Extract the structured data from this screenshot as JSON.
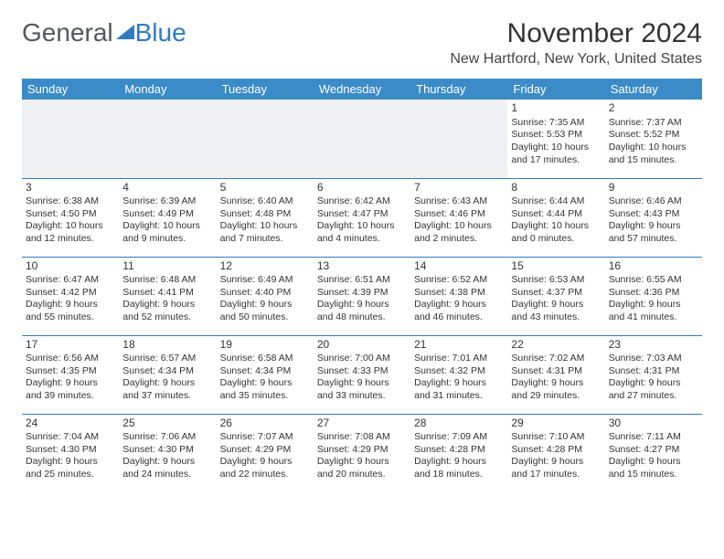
{
  "logo": {
    "text_gray": "General",
    "text_blue": "Blue",
    "triangle_color": "#2f7bbf"
  },
  "title": "November 2024",
  "location": "New Hartford, New York, United States",
  "header_bg": "#3b8bc8",
  "header_text_color": "#ffffff",
  "border_color": "#2f7bbf",
  "day_headers": [
    "Sunday",
    "Monday",
    "Tuesday",
    "Wednesday",
    "Thursday",
    "Friday",
    "Saturday"
  ],
  "weeks": [
    [
      null,
      null,
      null,
      null,
      null,
      {
        "n": "1",
        "sunrise": "7:35 AM",
        "sunset": "5:53 PM",
        "daylight": "10 hours and 17 minutes."
      },
      {
        "n": "2",
        "sunrise": "7:37 AM",
        "sunset": "5:52 PM",
        "daylight": "10 hours and 15 minutes."
      }
    ],
    [
      {
        "n": "3",
        "sunrise": "6:38 AM",
        "sunset": "4:50 PM",
        "daylight": "10 hours and 12 minutes."
      },
      {
        "n": "4",
        "sunrise": "6:39 AM",
        "sunset": "4:49 PM",
        "daylight": "10 hours and 9 minutes."
      },
      {
        "n": "5",
        "sunrise": "6:40 AM",
        "sunset": "4:48 PM",
        "daylight": "10 hours and 7 minutes."
      },
      {
        "n": "6",
        "sunrise": "6:42 AM",
        "sunset": "4:47 PM",
        "daylight": "10 hours and 4 minutes."
      },
      {
        "n": "7",
        "sunrise": "6:43 AM",
        "sunset": "4:46 PM",
        "daylight": "10 hours and 2 minutes."
      },
      {
        "n": "8",
        "sunrise": "6:44 AM",
        "sunset": "4:44 PM",
        "daylight": "10 hours and 0 minutes."
      },
      {
        "n": "9",
        "sunrise": "6:46 AM",
        "sunset": "4:43 PM",
        "daylight": "9 hours and 57 minutes."
      }
    ],
    [
      {
        "n": "10",
        "sunrise": "6:47 AM",
        "sunset": "4:42 PM",
        "daylight": "9 hours and 55 minutes."
      },
      {
        "n": "11",
        "sunrise": "6:48 AM",
        "sunset": "4:41 PM",
        "daylight": "9 hours and 52 minutes."
      },
      {
        "n": "12",
        "sunrise": "6:49 AM",
        "sunset": "4:40 PM",
        "daylight": "9 hours and 50 minutes."
      },
      {
        "n": "13",
        "sunrise": "6:51 AM",
        "sunset": "4:39 PM",
        "daylight": "9 hours and 48 minutes."
      },
      {
        "n": "14",
        "sunrise": "6:52 AM",
        "sunset": "4:38 PM",
        "daylight": "9 hours and 46 minutes."
      },
      {
        "n": "15",
        "sunrise": "6:53 AM",
        "sunset": "4:37 PM",
        "daylight": "9 hours and 43 minutes."
      },
      {
        "n": "16",
        "sunrise": "6:55 AM",
        "sunset": "4:36 PM",
        "daylight": "9 hours and 41 minutes."
      }
    ],
    [
      {
        "n": "17",
        "sunrise": "6:56 AM",
        "sunset": "4:35 PM",
        "daylight": "9 hours and 39 minutes."
      },
      {
        "n": "18",
        "sunrise": "6:57 AM",
        "sunset": "4:34 PM",
        "daylight": "9 hours and 37 minutes."
      },
      {
        "n": "19",
        "sunrise": "6:58 AM",
        "sunset": "4:34 PM",
        "daylight": "9 hours and 35 minutes."
      },
      {
        "n": "20",
        "sunrise": "7:00 AM",
        "sunset": "4:33 PM",
        "daylight": "9 hours and 33 minutes."
      },
      {
        "n": "21",
        "sunrise": "7:01 AM",
        "sunset": "4:32 PM",
        "daylight": "9 hours and 31 minutes."
      },
      {
        "n": "22",
        "sunrise": "7:02 AM",
        "sunset": "4:31 PM",
        "daylight": "9 hours and 29 minutes."
      },
      {
        "n": "23",
        "sunrise": "7:03 AM",
        "sunset": "4:31 PM",
        "daylight": "9 hours and 27 minutes."
      }
    ],
    [
      {
        "n": "24",
        "sunrise": "7:04 AM",
        "sunset": "4:30 PM",
        "daylight": "9 hours and 25 minutes."
      },
      {
        "n": "25",
        "sunrise": "7:06 AM",
        "sunset": "4:30 PM",
        "daylight": "9 hours and 24 minutes."
      },
      {
        "n": "26",
        "sunrise": "7:07 AM",
        "sunset": "4:29 PM",
        "daylight": "9 hours and 22 minutes."
      },
      {
        "n": "27",
        "sunrise": "7:08 AM",
        "sunset": "4:29 PM",
        "daylight": "9 hours and 20 minutes."
      },
      {
        "n": "28",
        "sunrise": "7:09 AM",
        "sunset": "4:28 PM",
        "daylight": "9 hours and 18 minutes."
      },
      {
        "n": "29",
        "sunrise": "7:10 AM",
        "sunset": "4:28 PM",
        "daylight": "9 hours and 17 minutes."
      },
      {
        "n": "30",
        "sunrise": "7:11 AM",
        "sunset": "4:27 PM",
        "daylight": "9 hours and 15 minutes."
      }
    ]
  ],
  "labels": {
    "sunrise": "Sunrise:",
    "sunset": "Sunset:",
    "daylight": "Daylight:"
  }
}
